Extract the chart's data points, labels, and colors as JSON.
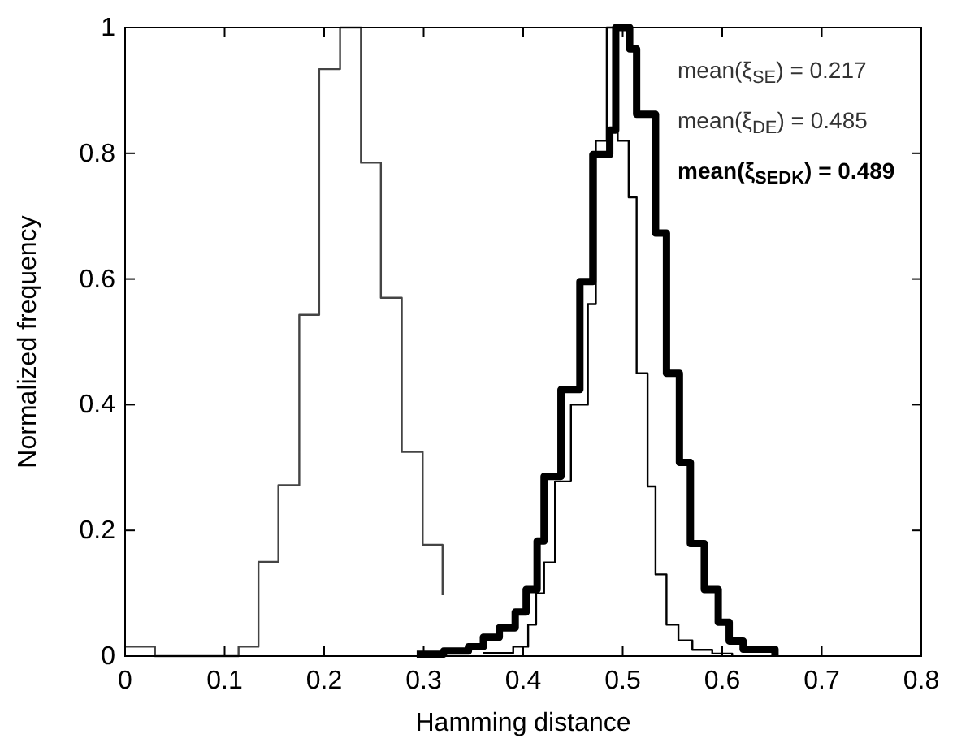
{
  "chart_data": {
    "type": "step",
    "xlabel": "Hamming distance",
    "ylabel": "Normalized frequency",
    "xlim": [
      0,
      0.8
    ],
    "ylim": [
      0,
      1
    ],
    "xticks": [
      0,
      0.1,
      0.2,
      0.3,
      0.4,
      0.5,
      0.6,
      0.7,
      0.8
    ],
    "yticks": [
      0,
      0.2,
      0.4,
      0.6,
      0.8,
      1
    ],
    "annotations": [
      "mean(ξ$_{SE}$) = 0.217",
      "mean(ξ$_{DE}$) = 0.485",
      "mean(ξ$_{SEDK}$) = 0.489"
    ],
    "series": [
      {
        "color": "#444444",
        "x": [
          0,
          0.03,
          0.114,
          0.134,
          0.154,
          0.175,
          0.195,
          0.216,
          0.237,
          0.257,
          0.278,
          0.299,
          0.319
        ],
        "values": [
          0.015,
          0,
          0.015,
          0.15,
          0.272,
          0.543,
          0.934,
          1,
          0.785,
          0.57,
          0.325,
          0.177,
          0.097
        ]
      },
      {
        "color": "#000000",
        "x": [
          0.36,
          0.39,
          0.405,
          0.413,
          0.421,
          0.432,
          0.448,
          0.465,
          0.473,
          0.484,
          0.495,
          0.506,
          0.514,
          0.525,
          0.533,
          0.544,
          0.556,
          0.57,
          0.59,
          0.61
        ],
        "values": [
          0.005,
          0.015,
          0.05,
          0.1,
          0.149,
          0.278,
          0.4,
          0.56,
          0.82,
          1,
          0.82,
          0.73,
          0.45,
          0.27,
          0.13,
          0.05,
          0.025,
          0.01,
          0.004,
          0
        ]
      },
      {
        "color": "#000000",
        "x": [
          0.293,
          0.32,
          0.345,
          0.36,
          0.376,
          0.392,
          0.403,
          0.414,
          0.421,
          0.438,
          0.457,
          0.47,
          0.487,
          0.493,
          0.507,
          0.514,
          0.533,
          0.544,
          0.557,
          0.568,
          0.582,
          0.596,
          0.607,
          0.621,
          0.653
        ],
        "values": [
          0.003,
          0.008,
          0.015,
          0.03,
          0.045,
          0.07,
          0.106,
          0.183,
          0.286,
          0.424,
          0.596,
          0.798,
          0.837,
          1,
          0.966,
          0.862,
          0.673,
          0.45,
          0.308,
          0.179,
          0.106,
          0.054,
          0.024,
          0.011,
          0
        ]
      }
    ]
  }
}
